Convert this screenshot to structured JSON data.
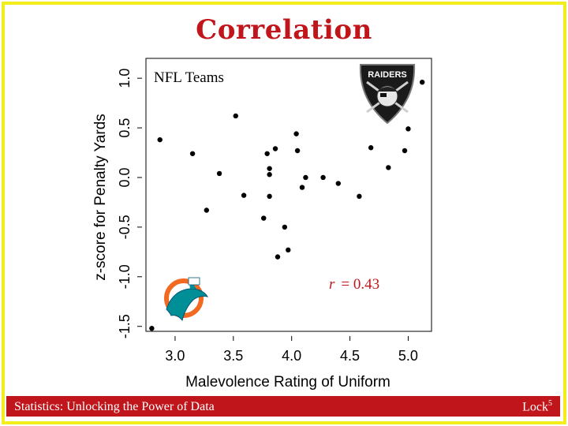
{
  "slide": {
    "title": "Correlation",
    "footer_left": "Statistics: Unlocking the Power of Data",
    "footer_right_base": "Lock",
    "footer_right_sup": "5",
    "frame_color": "#f2ee1c",
    "title_color": "#c0161b",
    "footer_color": "#c0161b"
  },
  "logos": {
    "raiders_text": "RAIDERS"
  },
  "chart_data": {
    "type": "scatter",
    "title": "NFL Teams",
    "xlabel": "Malevolence Rating of Uniform",
    "ylabel": "z-score for Penalty Yards",
    "xlim": [
      2.75,
      5.2
    ],
    "ylim": [
      -1.55,
      1.2
    ],
    "xticks": [
      "3.0",
      "3.5",
      "4.0",
      "4.5",
      "5.0"
    ],
    "yticks": [
      "-1.5",
      "-1.0",
      "-0.5",
      "0.0",
      "0.5",
      "1.0"
    ],
    "annotation": {
      "r_label": "r",
      "r_value": "= 0.43"
    },
    "points": [
      {
        "x": 2.8,
        "y": -1.52
      },
      {
        "x": 2.87,
        "y": 0.38
      },
      {
        "x": 3.15,
        "y": 0.24
      },
      {
        "x": 3.27,
        "y": -0.33
      },
      {
        "x": 3.38,
        "y": 0.04
      },
      {
        "x": 3.52,
        "y": 0.62
      },
      {
        "x": 3.59,
        "y": -0.18
      },
      {
        "x": 3.76,
        "y": -0.41
      },
      {
        "x": 3.79,
        "y": 0.24
      },
      {
        "x": 3.81,
        "y": 0.03
      },
      {
        "x": 3.81,
        "y": 0.09
      },
      {
        "x": 3.81,
        "y": -0.19
      },
      {
        "x": 3.86,
        "y": 0.29
      },
      {
        "x": 3.88,
        "y": -0.8
      },
      {
        "x": 3.94,
        "y": -0.5
      },
      {
        "x": 3.97,
        "y": -0.73
      },
      {
        "x": 4.04,
        "y": 0.44
      },
      {
        "x": 4.05,
        "y": 0.27
      },
      {
        "x": 4.09,
        "y": -0.1
      },
      {
        "x": 4.12,
        "y": 0.0
      },
      {
        "x": 4.27,
        "y": 0.0
      },
      {
        "x": 4.4,
        "y": -0.06
      },
      {
        "x": 4.58,
        "y": -0.19
      },
      {
        "x": 4.68,
        "y": 0.3
      },
      {
        "x": 4.83,
        "y": 0.1
      },
      {
        "x": 4.97,
        "y": 0.27
      },
      {
        "x": 5.0,
        "y": 0.49
      },
      {
        "x": 5.12,
        "y": 0.96
      }
    ]
  }
}
